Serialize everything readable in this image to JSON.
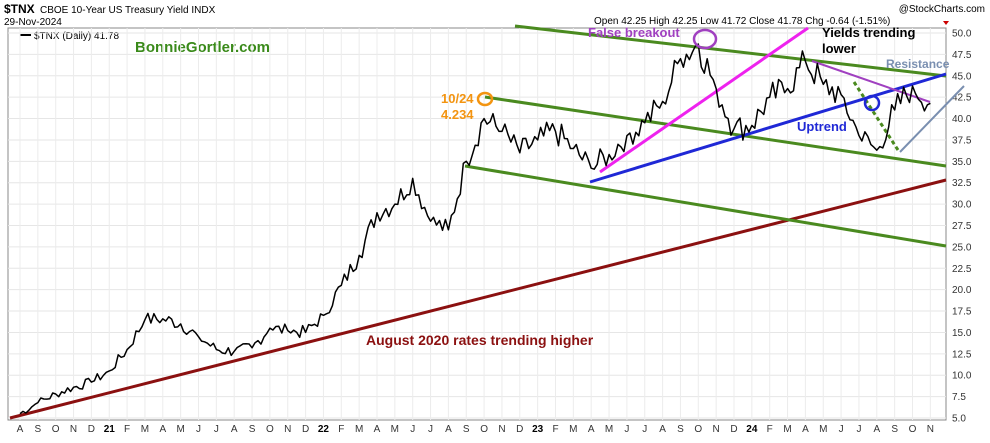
{
  "header": {
    "symbol": "$TNX",
    "name": "CBOE 10-Year US Treasury Yield INDX",
    "date": "29-Nov-2024",
    "legend": "$TNX (Daily) 41.78",
    "brand": "@StockCharts.com",
    "ohlc": "Open 42.25  High 42.25  Low 41.72  Close 41.78  Chg -0.64 (-1.51%)"
  },
  "watermark": "BonnieGortler.com",
  "colors": {
    "price": "#000000",
    "channel": "#4a8a1f",
    "longTrend": "#8b1010",
    "uptrend": "#1f28d6",
    "breakout": "#ee22ee",
    "downtrend": "#a040c0",
    "resistance": "#7a8fb0",
    "orange": "#f39410",
    "green_text": "#3a8a1a",
    "dashed": "#4a8a1f"
  },
  "annotations": {
    "peak_date": "10/24",
    "peak_value": "4.234",
    "false_breakout": "False breakout",
    "yields_lower_1": "Yields trending",
    "yields_lower_2": "lower",
    "resistance": "Resistance",
    "uptrend": "Uptrend",
    "aug2020": "August 2020 rates trending higher"
  },
  "chart_data": {
    "type": "line",
    "title": "$TNX CBOE 10-Year US Treasury Yield INDX",
    "ylim": [
      5,
      52
    ],
    "y_ticks": [
      5.0,
      7.5,
      10.0,
      12.5,
      15.0,
      17.5,
      20.0,
      22.5,
      25.0,
      27.5,
      30.0,
      32.5,
      35.0,
      37.5,
      40.0,
      42.5,
      45.0,
      47.5,
      50.0
    ],
    "x_ticks": [
      "A",
      "S",
      "O",
      "N",
      "D",
      "21",
      "F",
      "M",
      "A",
      "M",
      "J",
      "J",
      "A",
      "S",
      "O",
      "N",
      "D",
      "22",
      "F",
      "M",
      "A",
      "M",
      "J",
      "J",
      "A",
      "S",
      "O",
      "N",
      "D",
      "23",
      "F",
      "M",
      "A",
      "M",
      "J",
      "J",
      "A",
      "S",
      "O",
      "N",
      "D",
      "24",
      "F",
      "M",
      "A",
      "M",
      "J",
      "J",
      "A",
      "S",
      "O",
      "N"
    ],
    "x_start": "2020-08",
    "series": [
      {
        "name": "$TNX (Daily)",
        "interval": "monthly-approx",
        "values": [
          5.5,
          6.8,
          7.8,
          8.6,
          9.2,
          10.5,
          13.0,
          16.5,
          16.6,
          16.0,
          14.5,
          13.0,
          12.8,
          13.2,
          15.5,
          15.2,
          15.0,
          17.0,
          20.5,
          24.0,
          29.0,
          30.0,
          33.0,
          28.0,
          27.0,
          35.0,
          40.0,
          38.5,
          36.0,
          37.5,
          38.5,
          36.5,
          34.2,
          35.8,
          38.0,
          39.5,
          42.0,
          47.0,
          48.7,
          43.5,
          38.8,
          39.2,
          42.5,
          43.5,
          46.7,
          44.0,
          42.8,
          38.0,
          36.3,
          41.0,
          43.8,
          41.78
        ]
      }
    ]
  }
}
